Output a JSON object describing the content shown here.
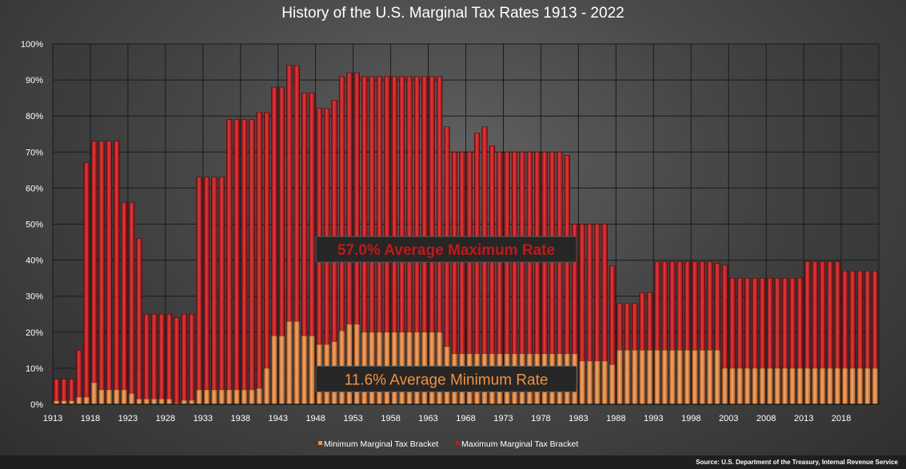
{
  "chart_data": {
    "type": "bar",
    "title": "History of the U.S. Marginal Tax Rates 1913 - 2022",
    "x_start": 1913,
    "x_end": 2022,
    "ylim": [
      0,
      100
    ],
    "y_ticks": [
      "0%",
      "10%",
      "20%",
      "30%",
      "40%",
      "50%",
      "60%",
      "70%",
      "80%",
      "90%",
      "100%"
    ],
    "x_tick_labels": [
      "1913",
      "1918",
      "1923",
      "1928",
      "1933",
      "1938",
      "1943",
      "1948",
      "1953",
      "1958",
      "1963",
      "1968",
      "1973",
      "1978",
      "1983",
      "1988",
      "1993",
      "1998",
      "2003",
      "2008",
      "2013",
      "2018"
    ],
    "grid": true,
    "legend_position": "bottom",
    "series": [
      {
        "name": "Minimum Marginal Tax Bracket",
        "color": "#e8904a",
        "values": [
          1,
          1,
          1,
          2,
          2,
          6,
          4,
          4,
          4,
          4,
          3,
          1.5,
          1.5,
          1.5,
          1.5,
          1.5,
          0.375,
          1.125,
          1.125,
          4,
          4,
          4,
          4,
          4,
          4,
          4,
          4,
          4.4,
          10,
          19,
          19,
          23,
          23,
          19,
          19,
          16.6,
          16.6,
          17.4,
          20.4,
          22.2,
          22.2,
          20,
          20,
          20,
          20,
          20,
          20,
          20,
          20,
          20,
          20,
          20,
          16,
          14,
          14,
          14,
          14,
          14,
          14,
          14,
          14,
          14,
          14,
          14,
          14,
          14,
          14,
          14,
          14,
          14,
          12,
          12,
          12,
          12,
          11,
          15,
          15,
          15,
          15,
          15,
          15,
          15,
          15,
          15,
          15,
          15,
          15,
          15,
          15,
          10,
          10,
          10,
          10,
          10,
          10,
          10,
          10,
          10,
          10,
          10,
          10,
          10,
          10,
          10,
          10,
          10,
          10,
          10,
          10,
          10
        ]
      },
      {
        "name": "Maximum Marginal Tax Bracket",
        "color": "#c0181a",
        "values": [
          7,
          7,
          7,
          15,
          67,
          73,
          73,
          73,
          73,
          56,
          56,
          46,
          25,
          25,
          25,
          25,
          24,
          25,
          25,
          63,
          63,
          63,
          63,
          79,
          79,
          79,
          79,
          81.1,
          81,
          88,
          88,
          94,
          94,
          86.45,
          86.45,
          82.13,
          82.13,
          84.36,
          91,
          92,
          92,
          91,
          91,
          91,
          91,
          91,
          91,
          91,
          91,
          91,
          91,
          91,
          77,
          70,
          70,
          70,
          75.25,
          77,
          71.75,
          70,
          70,
          70,
          70,
          70,
          70,
          70,
          70,
          70,
          69.13,
          50,
          50,
          50,
          50,
          50,
          38.5,
          28,
          28,
          28,
          31,
          31,
          39.6,
          39.6,
          39.6,
          39.6,
          39.6,
          39.6,
          39.6,
          39.6,
          39.1,
          38.6,
          35,
          35,
          35,
          35,
          35,
          35,
          35,
          35,
          35,
          35,
          39.6,
          39.6,
          39.6,
          39.6,
          39.6,
          37,
          37,
          37,
          37,
          37
        ]
      }
    ],
    "annotations": [
      {
        "text": "57.0% Average Maximum Rate",
        "y": 43
      },
      {
        "text": "11.6% Average Minimum Rate",
        "y": 7
      }
    ]
  },
  "source": "Source: U.S. Department of the Treasury, Internal Revenue Service"
}
